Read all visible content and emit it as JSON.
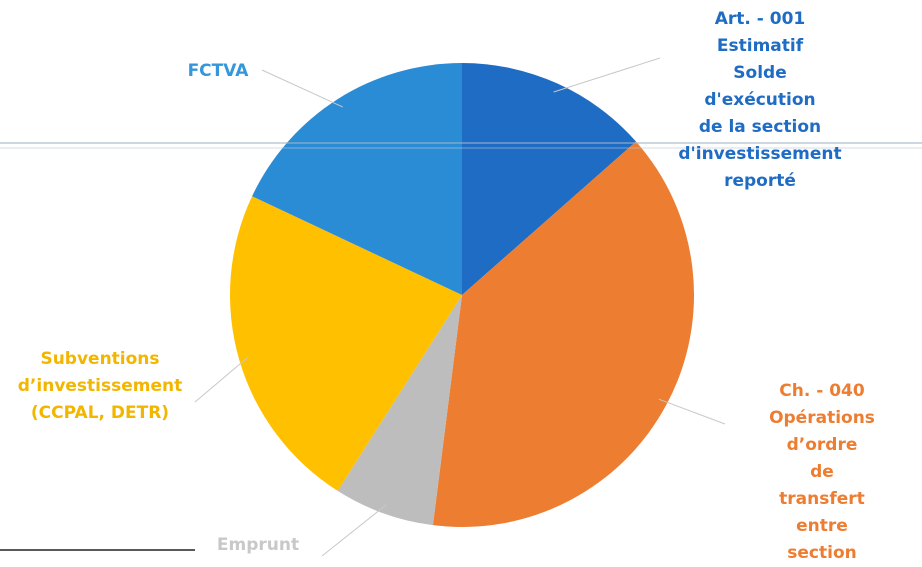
{
  "chart_data": {
    "type": "pie",
    "categories": [
      "Art. - 001 Estimatif\nSolde d'exécution\nde la section\nd'investissement\nreporté",
      "Ch. - 040\nOpérations d’ordre\nde transfert entre\nsection",
      "Emprunt",
      "Subventions\nd’investissement\n(CCPAL, DETR)",
      "FCTVA"
    ],
    "values": [
      13.5,
      38.5,
      7,
      23,
      18
    ],
    "colors": [
      "#1f6cc4",
      "#ed7d31",
      "#bdbdbd",
      "#ffc000",
      "#2b8cd6"
    ],
    "label_colors": [
      "#1f6cc4",
      "#ed7d31",
      "#c8c8c8",
      "#f2b600",
      "#3497dc"
    ]
  }
}
